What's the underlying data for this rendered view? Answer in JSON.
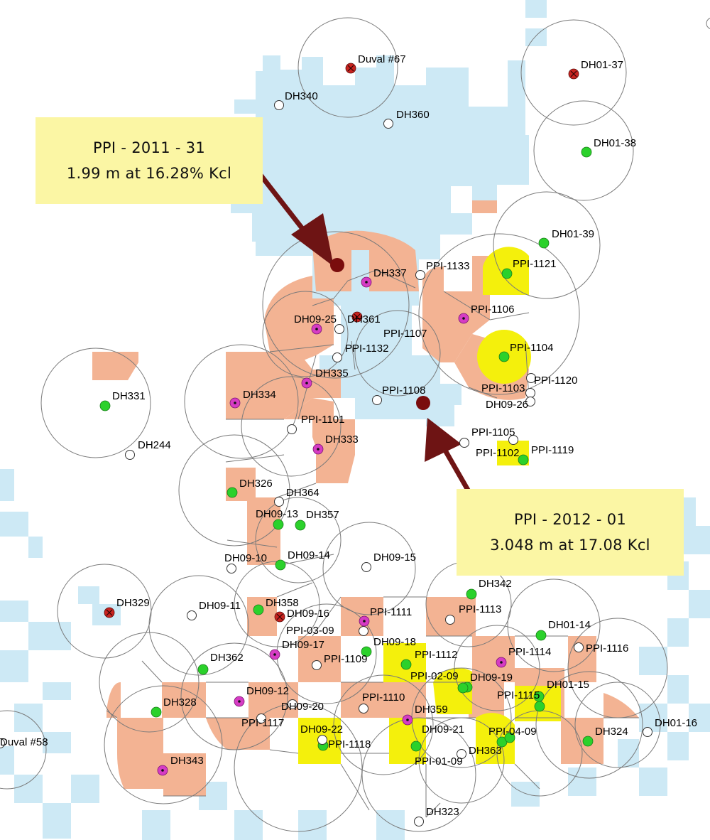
{
  "callouts": [
    {
      "line1": "PPI - 2011 - 31",
      "line2": "1.99 m at 16.28% Kcl"
    },
    {
      "line1": "PPI - 2012 - 01",
      "line2": "3.048 m at 17.08 Kcl"
    }
  ],
  "colors": {
    "background": "#ffffff",
    "lease_blue": "#cde9f5",
    "polygon_salmon": "#f3b393",
    "influence_yellow": "#f4f00c",
    "hole_green": "#2bd12b",
    "hole_magenta": "#d63cc4",
    "hole_red": "#c8231f",
    "arrow": "#6e1414",
    "callout_bg": "#fbf6a4"
  },
  "hole_types": [
    "open",
    "green",
    "magenta",
    "red-cross",
    "target"
  ],
  "holes": [
    {
      "id": "Duval #67",
      "type": "red-cross"
    },
    {
      "id": "DH01-37",
      "type": "red-cross"
    },
    {
      "id": "DH340",
      "type": "open"
    },
    {
      "id": "DH360",
      "type": "open"
    },
    {
      "id": "DH01-38",
      "type": "green"
    },
    {
      "id": "DH01-39",
      "type": "green"
    },
    {
      "id": "PPI-1121",
      "type": "green"
    },
    {
      "id": "DH337",
      "type": "magenta"
    },
    {
      "id": "PPI-1133",
      "type": "open"
    },
    {
      "id": "PPI-1106",
      "type": "magenta"
    },
    {
      "id": "DH09-25",
      "type": "magenta"
    },
    {
      "id": "DH361",
      "type": "red-cross"
    },
    {
      "id": "PPI-1107",
      "type": "open"
    },
    {
      "id": "PPI-1132",
      "type": "open"
    },
    {
      "id": "PPI-1104",
      "type": "green"
    },
    {
      "id": "DH335",
      "type": "magenta"
    },
    {
      "id": "PPI-1120",
      "type": "open"
    },
    {
      "id": "DH334",
      "type": "magenta"
    },
    {
      "id": "PPI-1108",
      "type": "open"
    },
    {
      "id": "PPI-1103",
      "type": "open"
    },
    {
      "id": "DH09-26",
      "type": "open"
    },
    {
      "id": "DH331",
      "type": "green"
    },
    {
      "id": "PPI-1101",
      "type": "open"
    },
    {
      "id": "DH333",
      "type": "magenta"
    },
    {
      "id": "DH244",
      "type": "open"
    },
    {
      "id": "PPI-1105",
      "type": "open"
    },
    {
      "id": "PPI-1102",
      "type": "open"
    },
    {
      "id": "PPI-1119",
      "type": "green"
    },
    {
      "id": "DH326",
      "type": "green"
    },
    {
      "id": "DH364",
      "type": "open"
    },
    {
      "id": "DH09-13",
      "type": "green"
    },
    {
      "id": "DH357",
      "type": "green"
    },
    {
      "id": "DH09-10",
      "type": "open"
    },
    {
      "id": "DH09-14",
      "type": "green"
    },
    {
      "id": "DH09-15",
      "type": "open"
    },
    {
      "id": "DH342",
      "type": "green"
    },
    {
      "id": "DH329",
      "type": "red-cross"
    },
    {
      "id": "DH09-11",
      "type": "open"
    },
    {
      "id": "DH358",
      "type": "green"
    },
    {
      "id": "DH09-16",
      "type": "red-cross"
    },
    {
      "id": "PPI-03-09",
      "type": "open"
    },
    {
      "id": "PPI-1111",
      "type": "magenta"
    },
    {
      "id": "PPI-1113",
      "type": "open"
    },
    {
      "id": "DH01-14",
      "type": "green"
    },
    {
      "id": "DH09-17",
      "type": "magenta"
    },
    {
      "id": "DH362",
      "type": "green"
    },
    {
      "id": "DH09-18",
      "type": "green"
    },
    {
      "id": "PPI-1109",
      "type": "open"
    },
    {
      "id": "PPI-1112",
      "type": "green"
    },
    {
      "id": "PPI-1114",
      "type": "magenta"
    },
    {
      "id": "PPI-1116",
      "type": "open"
    },
    {
      "id": "PPI-02-09",
      "type": "green"
    },
    {
      "id": "DH09-19",
      "type": "green"
    },
    {
      "id": "DH01-15",
      "type": "green"
    },
    {
      "id": "DH09-12",
      "type": "magenta"
    },
    {
      "id": "DH328",
      "type": "green"
    },
    {
      "id": "PPI-1110",
      "type": "open"
    },
    {
      "id": "PPI-1115",
      "type": "green"
    },
    {
      "id": "DH09-20",
      "type": "open"
    },
    {
      "id": "DH359",
      "type": "magenta"
    },
    {
      "id": "PPI-1117",
      "type": "open"
    },
    {
      "id": "DH09-22",
      "type": "green"
    },
    {
      "id": "DH09-21",
      "type": "green"
    },
    {
      "id": "PPI-04-09",
      "type": "green"
    },
    {
      "id": "DH324",
      "type": "green"
    },
    {
      "id": "DH01-16",
      "type": "open"
    },
    {
      "id": "Duval #58",
      "type": "open"
    },
    {
      "id": "PPI-1118",
      "type": "open"
    },
    {
      "id": "DH363",
      "type": "green"
    },
    {
      "id": "PPI-01-09",
      "type": "open"
    },
    {
      "id": "DH343",
      "type": "magenta"
    },
    {
      "id": "DH323",
      "type": "open"
    }
  ]
}
